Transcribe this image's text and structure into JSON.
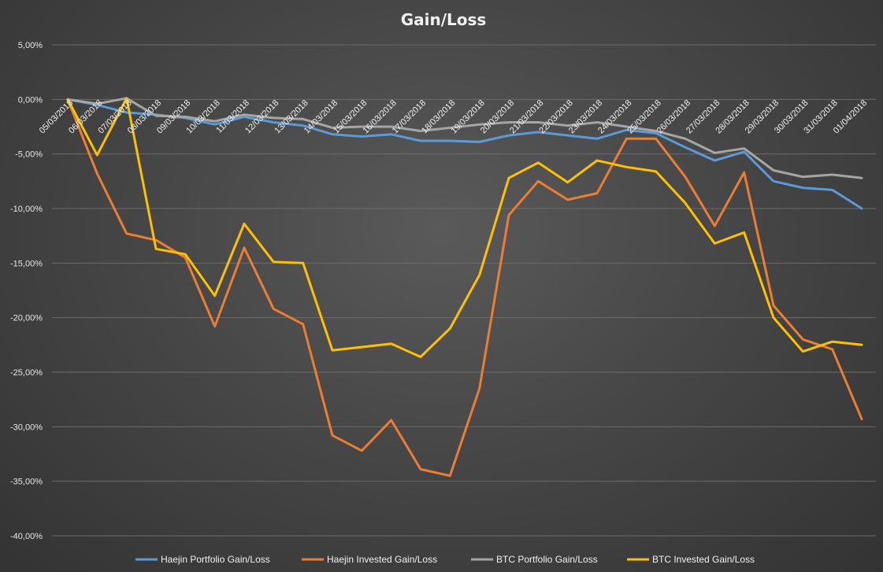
{
  "chart_data": {
    "type": "line",
    "title": "Gain/Loss",
    "xlabel": "",
    "ylabel": "",
    "ylim": [
      -40,
      5
    ],
    "yticks": [
      5,
      0,
      -5,
      -10,
      -15,
      -20,
      -25,
      -30,
      -35,
      -40
    ],
    "ytick_labels": [
      "5,00%",
      "0,00%",
      "-5,00%",
      "-10,00%",
      "-15,00%",
      "-20,00%",
      "-25,00%",
      "-30,00%",
      "-35,00%",
      "-40,00%"
    ],
    "grid": true,
    "legend_position": "bottom",
    "categories": [
      "05/03/2018",
      "06/03/2018",
      "07/03/2018",
      "08/03/2018",
      "09/03/2018",
      "10/03/2018",
      "11/03/2018",
      "12/03/2018",
      "13/03/2018",
      "14/03/2018",
      "15/03/2018",
      "16/03/2018",
      "17/03/2018",
      "18/03/2018",
      "19/03/2018",
      "20/03/2018",
      "21/03/2018",
      "22/03/2018",
      "23/03/2018",
      "24/03/2018",
      "25/03/2018",
      "26/03/2018",
      "27/03/2018",
      "28/03/2018",
      "29/03/2018",
      "30/03/2018",
      "31/03/2018",
      "01/04/2018"
    ],
    "series": [
      {
        "name": "Haejin Portfolio Gain/Loss",
        "color": "#5b9bd5",
        "values": [
          0,
          -0.5,
          -1.2,
          -1.4,
          -1.7,
          -2.3,
          -1.6,
          -2.1,
          -2.4,
          -3.2,
          -3.4,
          -3.2,
          -3.8,
          -3.8,
          -3.9,
          -3.3,
          -3.0,
          -3.3,
          -3.6,
          -2.8,
          -3.1,
          -4.4,
          -5.6,
          -4.8,
          -7.5,
          -8.1,
          -8.3,
          -10.0
        ]
      },
      {
        "name": "Haejin Invested Gain/Loss",
        "color": "#ed7d31",
        "values": [
          0,
          -6.8,
          -12.3,
          -12.9,
          -14.5,
          -20.8,
          -13.6,
          -19.2,
          -20.6,
          -30.8,
          -32.2,
          -29.4,
          -33.9,
          -34.5,
          -26.5,
          -10.6,
          -7.5,
          -9.2,
          -8.6,
          -3.6,
          -3.6,
          -7.1,
          -11.6,
          -6.7,
          -18.9,
          -22.0,
          -22.9,
          -29.3
        ]
      },
      {
        "name": "BTC Portfolio Gain/Loss",
        "color": "#a5a5a5",
        "values": [
          0,
          -0.4,
          0.1,
          -1.5,
          -1.6,
          -2.0,
          -1.4,
          -1.7,
          -1.8,
          -2.6,
          -2.5,
          -2.5,
          -2.9,
          -2.6,
          -2.3,
          -2.1,
          -2.1,
          -2.4,
          -2.1,
          -2.5,
          -2.9,
          -3.6,
          -4.9,
          -4.5,
          -6.5,
          -7.1,
          -6.9,
          -7.2
        ]
      },
      {
        "name": "BTC Invested Gain/Loss",
        "color": "#ffc000",
        "values": [
          0,
          -5.1,
          0.1,
          -13.7,
          -14.2,
          -18.0,
          -11.4,
          -14.9,
          -15.0,
          -23.0,
          -22.7,
          -22.4,
          -23.6,
          -21.0,
          -16.1,
          -7.2,
          -5.8,
          -7.6,
          -5.6,
          -6.2,
          -6.6,
          -9.5,
          -13.2,
          -12.2,
          -20.0,
          -23.1,
          -22.2,
          -22.5
        ]
      }
    ]
  }
}
